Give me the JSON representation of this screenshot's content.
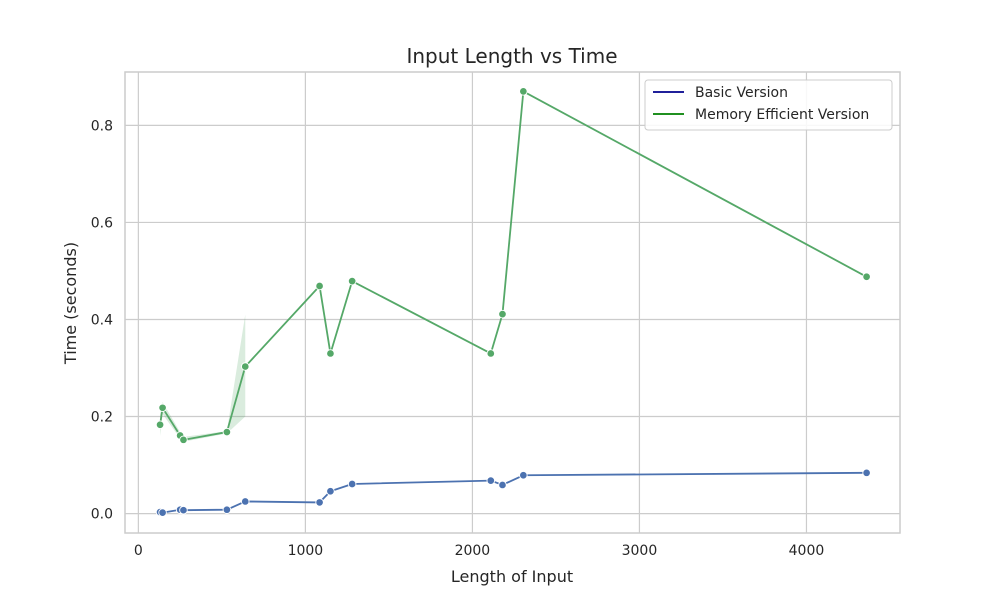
{
  "chart_data": {
    "type": "line",
    "title": "Input Length vs Time",
    "xlabel": "Length of Input",
    "ylabel": "Time (seconds)",
    "xlim": [
      -80,
      4560
    ],
    "ylim": [
      -0.04,
      0.91
    ],
    "x_ticks": [
      0,
      1000,
      2000,
      3000,
      4000
    ],
    "x_tick_labels": [
      "0",
      "1000",
      "2000",
      "3000",
      "4000"
    ],
    "y_ticks": [
      0.0,
      0.2,
      0.4,
      0.6,
      0.8
    ],
    "y_tick_labels": [
      "0.0",
      "0.2",
      "0.4",
      "0.6",
      "0.8"
    ],
    "grid": true,
    "legend_position": "top-right",
    "legend": [
      {
        "name": "Basic Version",
        "color": "#00008b"
      },
      {
        "name": "Memory Efficient Version",
        "color": "#008000"
      }
    ],
    "series": [
      {
        "name": "Basic Version",
        "color": "#4c72b0",
        "x": [
          130,
          145,
          250,
          270,
          530,
          640,
          1085,
          1150,
          1280,
          2110,
          2180,
          2305,
          4360
        ],
        "y": [
          0.003,
          0.002,
          0.008,
          0.007,
          0.008,
          0.025,
          0.023,
          0.046,
          0.061,
          0.068,
          0.059,
          0.079,
          0.084
        ]
      },
      {
        "name": "Memory Efficient Version",
        "color": "#55a868",
        "x": [
          130,
          145,
          250,
          270,
          530,
          640,
          1085,
          1150,
          1280,
          2110,
          2180,
          2305,
          4360
        ],
        "y": [
          0.183,
          0.218,
          0.161,
          0.152,
          0.168,
          0.303,
          0.469,
          0.33,
          0.479,
          0.33,
          0.411,
          0.87,
          0.488
        ]
      }
    ],
    "confidence_bands": [
      {
        "series": "Memory Efficient Version",
        "x": [
          130,
          145,
          250,
          270,
          530,
          640
        ],
        "lower": [
          0.16,
          0.205,
          0.155,
          0.148,
          0.165,
          0.2
        ],
        "upper": [
          0.205,
          0.23,
          0.168,
          0.158,
          0.17,
          0.41
        ]
      }
    ]
  }
}
